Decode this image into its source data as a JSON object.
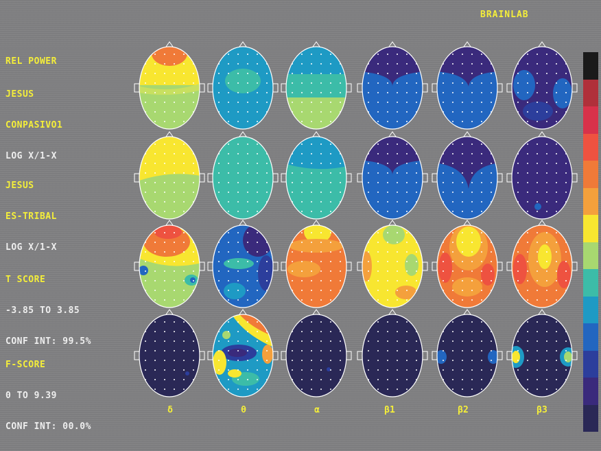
{
  "brand": "BRAINLAB",
  "title": "REL POWER",
  "rows": [
    {
      "lines": [
        {
          "text": "JESUS",
          "color": "yellow"
        },
        {
          "text": "CONPASIVO1",
          "color": "yellow"
        },
        {
          "text": "LOG X/1-X",
          "color": "white"
        }
      ]
    },
    {
      "lines": [
        {
          "text": "JESUS",
          "color": "yellow"
        },
        {
          "text": "ES-TRIBAL",
          "color": "yellow"
        },
        {
          "text": "LOG X/1-X",
          "color": "white"
        }
      ]
    },
    {
      "lines": [
        {
          "text": "T SCORE",
          "color": "yellow"
        },
        {
          "text": "-3.85 TO 3.85",
          "color": "white"
        },
        {
          "text": "CONF INT: 99.5%",
          "color": "white"
        }
      ]
    },
    {
      "lines": [
        {
          "text": "F-SCORE",
          "color": "yellow"
        },
        {
          "text": "0 TO 9.39",
          "color": "white"
        },
        {
          "text": "CONF INT: 00.0%",
          "color": "white"
        }
      ]
    }
  ],
  "bands": [
    "δ",
    "θ",
    "α",
    "β1",
    "β2",
    "β3"
  ],
  "colors": {
    "label_yellow": "#f4ee3a",
    "label_white": "#eeeeee",
    "background": "#7e7e80"
  },
  "color_scale": [
    "#1a1a1a",
    "#b0303a",
    "#d8324a",
    "#ee5240",
    "#f07a38",
    "#f4a03c",
    "#f8e630",
    "#a8d870",
    "#3cbca8",
    "#1e9ac4",
    "#2266c0",
    "#2c3e9c",
    "#3a2a7c",
    "#2a2856"
  ],
  "maps": [
    [
      "yellow-top-green-bottom-orange-frontal",
      "blue-green-central",
      "blue-green-lower",
      "blue-purple-frontal",
      "blue-purple-frontal",
      "purple-blue"
    ],
    [
      "yellow-top-green-bottom",
      "teal",
      "blue-teal",
      "blue-purple-frontal",
      "blue-purple-frontal",
      "purple"
    ],
    [
      "orange-top-green-bottom",
      "blue-purple",
      "orange-yellow",
      "yellow-green",
      "orange-yellow",
      "orange-yellow"
    ],
    [
      "purple",
      "rainbow",
      "purple",
      "purple",
      "purple-blue-sides",
      "purple-yellow-sides"
    ]
  ]
}
